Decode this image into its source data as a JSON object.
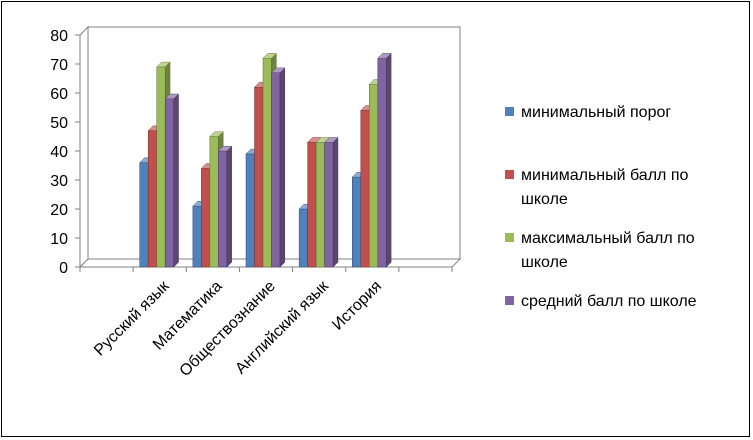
{
  "chart_data": {
    "type": "bar",
    "categories": [
      "Русский язык",
      "Математика",
      "Обществознание",
      "Английский язык",
      "История"
    ],
    "series": [
      {
        "name": "минимальный порог",
        "values": [
          36,
          21,
          39,
          20,
          31
        ],
        "color": "#4F81BD"
      },
      {
        "name": "минимальный балл по школе",
        "values": [
          47,
          34,
          62,
          43,
          54
        ],
        "color": "#C0504D"
      },
      {
        "name": "максимальный балл по школе",
        "values": [
          69,
          45,
          72,
          43,
          63
        ],
        "color": "#9BBB59"
      },
      {
        "name": "средний балл по школе",
        "values": [
          58,
          40,
          67,
          43,
          72
        ],
        "color": "#8064A2"
      }
    ],
    "yticks": [
      "0",
      "10",
      "20",
      "30",
      "40",
      "50",
      "60",
      "70",
      "80"
    ],
    "ylim": [
      0,
      80
    ],
    "grid": false,
    "legend_position": "right",
    "style": "3d-clustered-column"
  }
}
